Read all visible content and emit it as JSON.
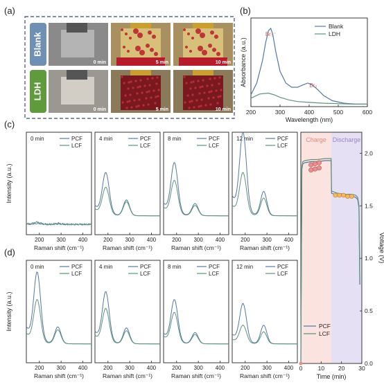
{
  "panels": {
    "a": {
      "label": "(a)",
      "rows": [
        {
          "name": "Blank",
          "color": "#6f8fb4",
          "photos": [
            "0 min",
            "5 min",
            "10 min"
          ]
        },
        {
          "name": "LDH",
          "color": "#5f9a3c",
          "photos": [
            "0 min",
            "5 min",
            "10 min"
          ]
        }
      ]
    },
    "b": {
      "label": "(b)"
    },
    "c": {
      "label": "(c)"
    },
    "d": {
      "label": "(d)"
    },
    "voltage": {
      "charge_label": "Charge",
      "discharge_label": "Discharge"
    }
  },
  "colors": {
    "pcf": "#5577a3",
    "lcf": "#5d9479",
    "charge_bg": "#fbe3df",
    "discharge_bg": "#e6e0f4",
    "charge_text": "#e08a80",
    "discharge_text": "#9a86c8",
    "photo_red": "#b81c2a",
    "photo_tan": "#d9c07a"
  },
  "chart_data": [
    {
      "id": "absorbance",
      "type": "line",
      "xlabel": "Wavelength (nm)",
      "ylabel": "Absorbance (a.u.)",
      "xlim": [
        200,
        600
      ],
      "xticks": [
        200,
        300,
        400,
        500,
        600
      ],
      "legend": "top-right",
      "annotations": [
        {
          "text": "Br₃⁻",
          "x": 268
        },
        {
          "text": "Br₂",
          "x": 395
        }
      ],
      "series": [
        {
          "name": "Blank",
          "x": [
            200,
            220,
            240,
            250,
            260,
            268,
            275,
            285,
            300,
            320,
            340,
            360,
            380,
            395,
            410,
            430,
            450,
            480,
            520,
            560,
            600
          ],
          "y": [
            0.14,
            0.28,
            0.55,
            0.75,
            0.9,
            0.93,
            0.86,
            0.66,
            0.42,
            0.28,
            0.23,
            0.23,
            0.26,
            0.28,
            0.26,
            0.2,
            0.13,
            0.07,
            0.04,
            0.03,
            0.03
          ]
        },
        {
          "name": "LDH",
          "x": [
            200,
            230,
            260,
            280,
            300,
            330,
            360,
            400,
            450,
            500,
            550,
            600
          ],
          "y": [
            0.1,
            0.15,
            0.16,
            0.14,
            0.11,
            0.08,
            0.06,
            0.05,
            0.04,
            0.035,
            0.03,
            0.03
          ]
        }
      ]
    },
    {
      "id": "raman-c",
      "type": "line",
      "xlabel": "Raman shift (cm⁻¹)",
      "ylabel": "Intensity (a.u.)",
      "xlim": [
        140,
        440
      ],
      "xticks": [
        200,
        300,
        400
      ],
      "legend": "top-right",
      "subplots": [
        {
          "time": "0 min",
          "pcf": {
            "p1": 0.02,
            "p2": 0.01
          },
          "lcf": {
            "p1": 0.01,
            "p2": 0.005
          }
        },
        {
          "time": "4 min",
          "pcf": {
            "p1": 0.44,
            "p2": 0.17
          },
          "lcf": {
            "p1": 0.29,
            "p2": 0.15
          }
        },
        {
          "time": "8 min",
          "pcf": {
            "p1": 0.54,
            "p2": 0.13
          },
          "lcf": {
            "p1": 0.36,
            "p2": 0.11
          }
        },
        {
          "time": "12 min",
          "pcf": {
            "p1": 0.85,
            "p2": 0.26
          },
          "lcf": {
            "p1": 0.44,
            "p2": 0.19
          }
        }
      ],
      "series_names": [
        "PCF",
        "LCF"
      ]
    },
    {
      "id": "raman-d",
      "type": "line",
      "xlabel": "Raman shift (cm⁻¹)",
      "ylabel": "Intensity (a.u.)",
      "xlim": [
        140,
        440
      ],
      "xticks": [
        200,
        300,
        400
      ],
      "legend": "top-right",
      "subplots": [
        {
          "time": "0 min",
          "pcf": {
            "p1": 0.73,
            "p2": 0.18
          },
          "lcf": {
            "p1": 0.45,
            "p2": 0.15
          }
        },
        {
          "time": "4 min",
          "pcf": {
            "p1": 0.53,
            "p2": 0.17
          },
          "lcf": {
            "p1": 0.36,
            "p2": 0.14
          }
        },
        {
          "time": "8 min",
          "pcf": {
            "p1": 0.45,
            "p2": 0.12
          },
          "lcf": {
            "p1": 0.32,
            "p2": 0.1
          }
        },
        {
          "time": "12 min",
          "pcf": {
            "p1": 0.41,
            "p2": 0.2
          },
          "lcf": {
            "p1": 0.19,
            "p2": 0.13
          }
        }
      ],
      "series_names": [
        "PCF",
        "LCF"
      ]
    },
    {
      "id": "voltage",
      "type": "line",
      "xlabel": "Time (min)",
      "ylabel": "Voltage (V)",
      "xlim": [
        0,
        30
      ],
      "ylim": [
        0,
        2.2
      ],
      "xticks": [
        0,
        10,
        20,
        30
      ],
      "yticks": [
        0.0,
        0.5,
        1.0,
        1.5,
        2.0
      ],
      "legend": "bottom-left",
      "charge_range": [
        0,
        15
      ],
      "discharge_range": [
        15,
        30
      ],
      "series": [
        {
          "name": "PCF",
          "x": [
            0,
            0.5,
            1,
            2,
            5,
            8,
            12,
            14.9,
            15.1,
            18,
            22,
            25,
            27,
            28,
            28.6,
            29
          ],
          "y": [
            0,
            1.85,
            1.9,
            1.91,
            1.92,
            1.92,
            1.93,
            1.93,
            1.62,
            1.6,
            1.59,
            1.59,
            1.58,
            1.56,
            1.48,
            0.75
          ]
        },
        {
          "name": "LCF",
          "x": [
            0,
            0.5,
            1,
            2,
            5,
            8,
            12,
            14.9,
            15.1,
            18,
            22,
            25,
            27,
            28,
            28.6,
            29
          ],
          "y": [
            0,
            1.87,
            1.92,
            1.93,
            1.94,
            1.94,
            1.95,
            1.95,
            1.64,
            1.62,
            1.61,
            1.61,
            1.6,
            1.58,
            1.5,
            0.78
          ]
        }
      ],
      "markers_charge": [
        [
          5,
          1.89
        ],
        [
          7,
          1.9
        ],
        [
          9,
          1.91
        ],
        [
          5,
          1.84
        ],
        [
          7,
          1.85
        ],
        [
          9,
          1.86
        ]
      ],
      "markers_discharge": [
        [
          17,
          1.6
        ],
        [
          19,
          1.6
        ],
        [
          21,
          1.6
        ],
        [
          23,
          1.59
        ],
        [
          25,
          1.59
        ]
      ],
      "marker_start": [
        0,
        0
      ]
    }
  ]
}
